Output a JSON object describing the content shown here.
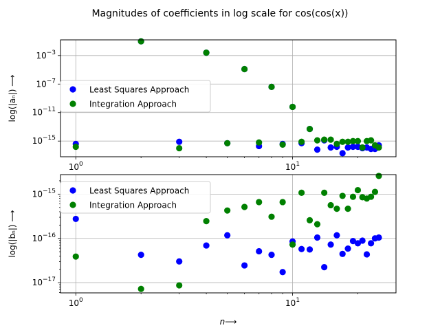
{
  "figure": {
    "title": "Magnitudes of coefficients in log scale for cos(cos(x))"
  },
  "chart_data": [
    {
      "type": "scatter",
      "name": "an",
      "ylabel": "log(|aₙ|) ⟶",
      "xlabel": "",
      "xscale": "log",
      "yscale": "log",
      "xlim": [
        0.85,
        30
      ],
      "ylim_log10": [
        -17.2,
        -0.8
      ],
      "xticks": [
        {
          "value": 1,
          "base": "10",
          "exp": "0"
        },
        {
          "value": 10,
          "base": "10",
          "exp": "1"
        }
      ],
      "yticks": [
        {
          "value_log10": -3,
          "base": "10",
          "exp": "−3"
        },
        {
          "value_log10": -7,
          "base": "10",
          "exp": "−7"
        },
        {
          "value_log10": -11,
          "base": "10",
          "exp": "−11"
        },
        {
          "value_log10": -15,
          "base": "10",
          "exp": "−15"
        }
      ],
      "grid": true,
      "legend": "center-left",
      "series": [
        {
          "name": "Least Squares Approach",
          "color": "#0000ff",
          "x": [
            1,
            2,
            3,
            4,
            5,
            6,
            7,
            8,
            9,
            10,
            11,
            12,
            13,
            14,
            15,
            16,
            17,
            18,
            19,
            20,
            21,
            22,
            23,
            24,
            25
          ],
          "log10_y": [
            -15.4,
            -1.0,
            -15.1,
            -2.6,
            -15.3,
            -4.9,
            -15.7,
            -7.4,
            -15.4,
            -10.2,
            -15.3,
            -13.3,
            -16.2,
            -14.9,
            -15.9,
            -15.8,
            -16.7,
            -15.9,
            -15.8,
            -15.8,
            -16.0,
            -15.9,
            -16.1,
            -16.1,
            -15.6
          ],
          "log10_y_note_x2": -1.0
        },
        {
          "name": "Integration Approach",
          "color": "#008000",
          "x": [
            1,
            2,
            3,
            4,
            5,
            6,
            7,
            8,
            9,
            10,
            11,
            12,
            13,
            14,
            15,
            16,
            17,
            18,
            19,
            20,
            21,
            22,
            23,
            24,
            25
          ],
          "log10_y": [
            -15.8,
            -1.0,
            -16.0,
            -2.6,
            -15.3,
            -4.9,
            -15.2,
            -7.4,
            -15.5,
            -10.2,
            -15.1,
            -13.3,
            -14.9,
            -14.8,
            -14.8,
            -15.4,
            -15.1,
            -15.1,
            -15.0,
            -15.0,
            -15.9,
            -15.0,
            -14.9,
            -15.6,
            -15.9
          ]
        }
      ]
    },
    {
      "type": "scatter",
      "name": "bn",
      "ylabel": "log(|bₙ|) ⟶",
      "xlabel": "n⟶",
      "xscale": "log",
      "yscale": "log",
      "xlim": [
        0.85,
        30
      ],
      "ylim_log10": [
        -17.23,
        -14.56
      ],
      "xticks": [
        {
          "value": 1,
          "base": "10",
          "exp": "0"
        },
        {
          "value": 10,
          "base": "10",
          "exp": "1"
        }
      ],
      "yticks": [
        {
          "value_log10": -15,
          "base": "10",
          "exp": "−15"
        },
        {
          "value_log10": -16,
          "base": "10",
          "exp": "−16"
        },
        {
          "value_log10": -17,
          "base": "10",
          "exp": "−17"
        }
      ],
      "grid": true,
      "legend": "upper-left",
      "series": [
        {
          "name": "Least Squares Approach",
          "color": "#0000ff",
          "x": [
            1,
            2,
            3,
            4,
            5,
            6,
            7,
            8,
            9,
            10,
            11,
            12,
            13,
            14,
            15,
            16,
            17,
            18,
            19,
            20,
            21,
            22,
            23,
            24,
            25
          ],
          "log10_y": [
            -15.56,
            -16.37,
            -16.52,
            -16.16,
            -15.93,
            -16.61,
            -16.29,
            -16.37,
            -16.76,
            -16.07,
            -16.24,
            -16.25,
            -15.98,
            -16.65,
            -16.14,
            -15.93,
            -16.35,
            -16.23,
            -16.06,
            -16.11,
            -16.05,
            -16.36,
            -16.11,
            -16.0,
            -15.98
          ]
        },
        {
          "name": "Integration Approach",
          "color": "#008000",
          "x": [
            1,
            2,
            3,
            4,
            5,
            6,
            7,
            8,
            9,
            10,
            11,
            12,
            13,
            14,
            15,
            16,
            17,
            18,
            19,
            20,
            21,
            22,
            23,
            24,
            25
          ],
          "log10_y": [
            -16.41,
            -17.14,
            -17.06,
            -15.61,
            -15.37,
            -15.29,
            -15.18,
            -15.51,
            -15.18,
            -16.14,
            -14.97,
            -15.59,
            -15.68,
            -14.97,
            -15.25,
            -15.33,
            -15.04,
            -15.33,
            -15.06,
            -14.91,
            -15.07,
            -15.1,
            -15.06,
            -14.95,
            -14.59
          ]
        }
      ]
    }
  ]
}
